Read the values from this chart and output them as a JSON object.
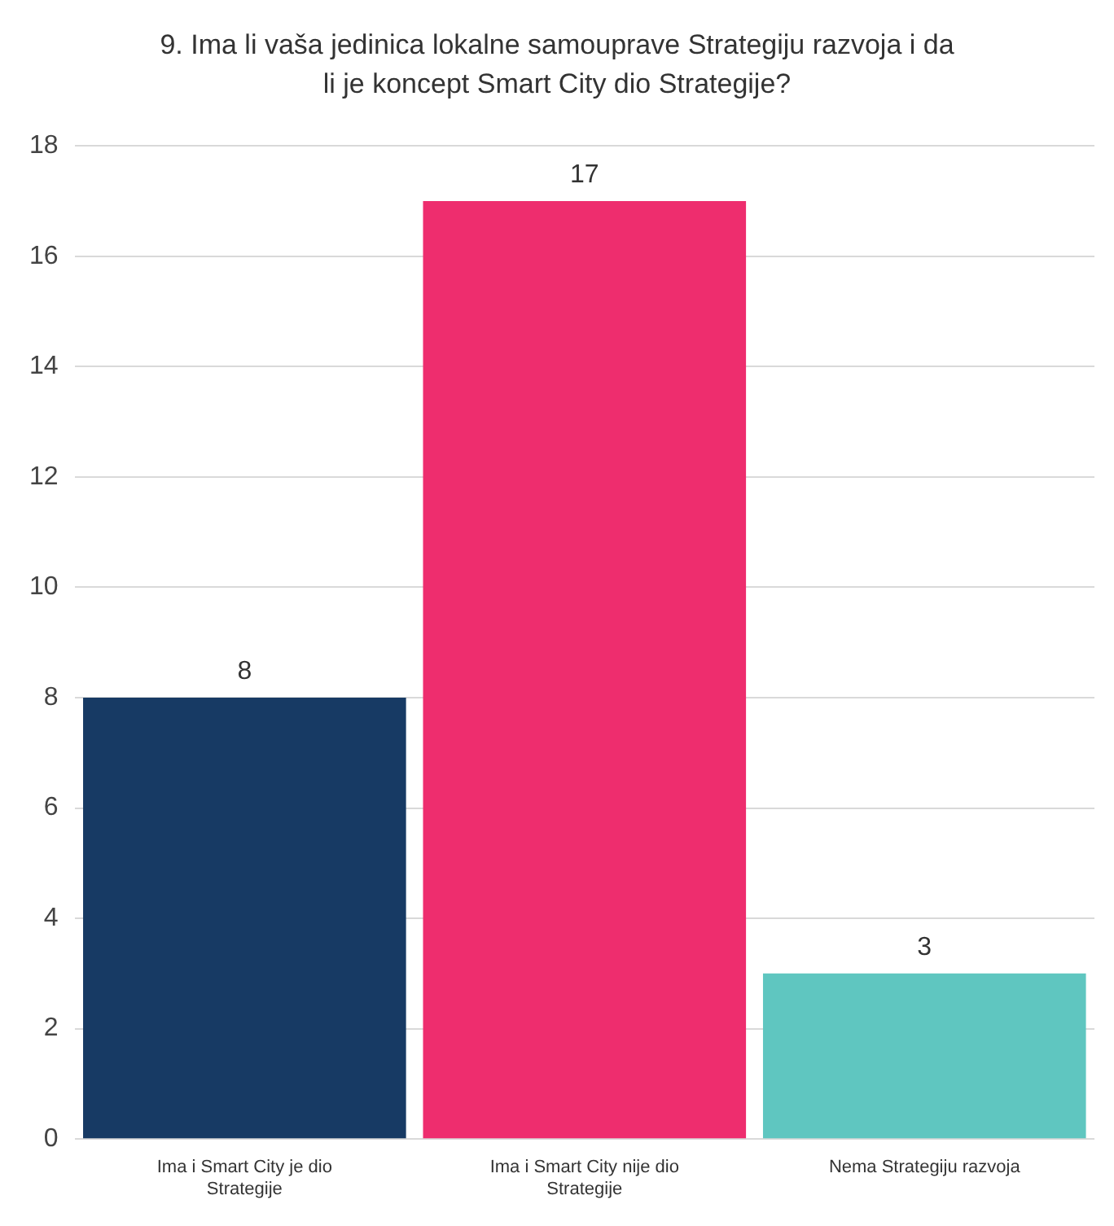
{
  "chart_data": {
    "type": "bar",
    "title": "9. Ima li vaša jedinica lokalne samouprave Strategiju razvoja i da li je koncept Smart City dio Strategije?",
    "categories": [
      "Ima i Smart City je dio Strategije",
      "Ima i Smart City nije dio Strategije",
      "Nema Strategiju razvoja"
    ],
    "values": [
      8,
      17,
      3
    ],
    "colors": [
      "#173a64",
      "#ee2d6e",
      "#5fc6c0"
    ],
    "ylim": [
      0,
      18
    ],
    "yticks": [
      0,
      2,
      4,
      6,
      8,
      10,
      12,
      14,
      16,
      18
    ],
    "grid": "y",
    "data_labels": true,
    "legend": false
  }
}
